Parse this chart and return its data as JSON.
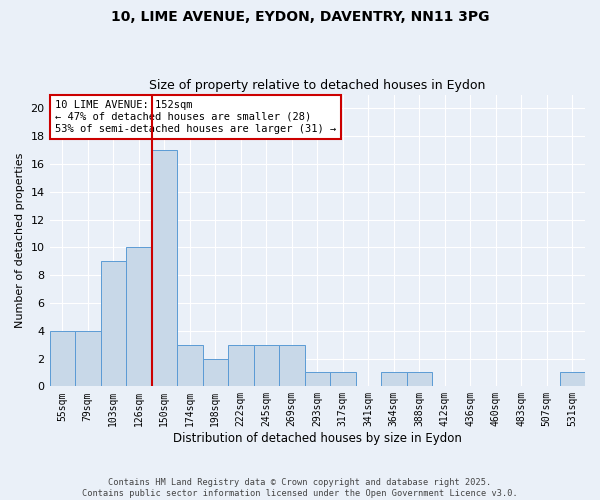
{
  "title1": "10, LIME AVENUE, EYDON, DAVENTRY, NN11 3PG",
  "title2": "Size of property relative to detached houses in Eydon",
  "xlabel": "Distribution of detached houses by size in Eydon",
  "ylabel": "Number of detached properties",
  "categories": [
    "55sqm",
    "79sqm",
    "103sqm",
    "126sqm",
    "150sqm",
    "174sqm",
    "198sqm",
    "222sqm",
    "245sqm",
    "269sqm",
    "293sqm",
    "317sqm",
    "341sqm",
    "364sqm",
    "388sqm",
    "412sqm",
    "436sqm",
    "460sqm",
    "483sqm",
    "507sqm",
    "531sqm"
  ],
  "values": [
    4,
    4,
    9,
    10,
    17,
    3,
    2,
    3,
    3,
    3,
    1,
    1,
    0,
    1,
    1,
    0,
    0,
    0,
    0,
    0,
    1
  ],
  "bar_color": "#c8d8e8",
  "bar_edge_color": "#5b9bd5",
  "bg_color": "#eaf0f8",
  "grid_color": "#ffffff",
  "vline_x_index": 4,
  "vline_color": "#cc0000",
  "annotation_text": "10 LIME AVENUE: 152sqm\n← 47% of detached houses are smaller (28)\n53% of semi-detached houses are larger (31) →",
  "annotation_box_color": "#ffffff",
  "annotation_box_edge": "#cc0000",
  "footnote": "Contains HM Land Registry data © Crown copyright and database right 2025.\nContains public sector information licensed under the Open Government Licence v3.0.",
  "ylim": [
    0,
    21
  ],
  "yticks": [
    0,
    2,
    4,
    6,
    8,
    10,
    12,
    14,
    16,
    18,
    20
  ]
}
